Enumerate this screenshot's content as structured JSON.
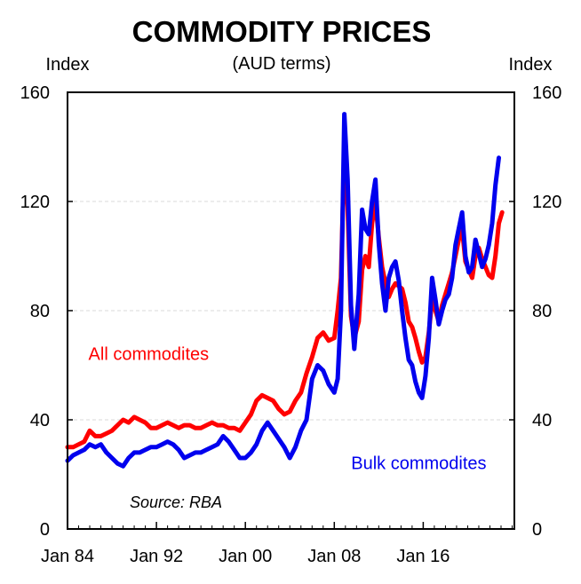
{
  "chart_data": {
    "type": "line",
    "title": "COMMODITY PRICES",
    "subtitle": "(AUD terms)",
    "ylabel_left": "Index",
    "ylabel_right": "Index",
    "ylim": [
      0,
      160
    ],
    "yticks": [
      0,
      40,
      80,
      120,
      160
    ],
    "xlim": [
      1984.0,
      2024.2
    ],
    "xticks": [
      {
        "x": 1984,
        "label": "Jan 84"
      },
      {
        "x": 1992,
        "label": "Jan 92"
      },
      {
        "x": 2000,
        "label": "Jan 00"
      },
      {
        "x": 2008,
        "label": "Jan 08"
      },
      {
        "x": 2016,
        "label": "Jan 16"
      }
    ],
    "grid": true,
    "source": "Source: RBA",
    "series": [
      {
        "name": "All commodites",
        "color": "#ff0000",
        "label_anchor": [
          1991.3,
          62
        ],
        "points": [
          [
            1984.0,
            30
          ],
          [
            1984.5,
            30
          ],
          [
            1985.0,
            31
          ],
          [
            1985.5,
            32
          ],
          [
            1986.0,
            36
          ],
          [
            1986.5,
            34
          ],
          [
            1987.0,
            34
          ],
          [
            1987.5,
            35
          ],
          [
            1988.0,
            36
          ],
          [
            1988.5,
            38
          ],
          [
            1989.0,
            40
          ],
          [
            1989.5,
            39
          ],
          [
            1990.0,
            41
          ],
          [
            1990.5,
            40
          ],
          [
            1991.0,
            39
          ],
          [
            1991.5,
            37
          ],
          [
            1992.0,
            37
          ],
          [
            1992.5,
            38
          ],
          [
            1993.0,
            39
          ],
          [
            1993.5,
            38
          ],
          [
            1994.0,
            37
          ],
          [
            1994.5,
            38
          ],
          [
            1995.0,
            38
          ],
          [
            1995.5,
            37
          ],
          [
            1996.0,
            37
          ],
          [
            1996.5,
            38
          ],
          [
            1997.0,
            39
          ],
          [
            1997.5,
            38
          ],
          [
            1998.0,
            38
          ],
          [
            1998.5,
            37
          ],
          [
            1999.0,
            37
          ],
          [
            1999.5,
            36
          ],
          [
            2000.0,
            39
          ],
          [
            2000.5,
            42
          ],
          [
            2001.0,
            47
          ],
          [
            2001.5,
            49
          ],
          [
            2002.0,
            48
          ],
          [
            2002.5,
            47
          ],
          [
            2003.0,
            44
          ],
          [
            2003.5,
            42
          ],
          [
            2004.0,
            43
          ],
          [
            2004.5,
            47
          ],
          [
            2005.0,
            50
          ],
          [
            2005.5,
            57
          ],
          [
            2006.0,
            63
          ],
          [
            2006.5,
            70
          ],
          [
            2007.0,
            72
          ],
          [
            2007.5,
            69
          ],
          [
            2008.0,
            70
          ],
          [
            2008.3,
            80
          ],
          [
            2008.6,
            92
          ],
          [
            2008.9,
            138
          ],
          [
            2009.2,
            118
          ],
          [
            2009.5,
            78
          ],
          [
            2009.8,
            70
          ],
          [
            2010.2,
            76
          ],
          [
            2010.5,
            95
          ],
          [
            2010.8,
            100
          ],
          [
            2011.1,
            96
          ],
          [
            2011.4,
            112
          ],
          [
            2011.7,
            120
          ],
          [
            2012.0,
            107
          ],
          [
            2012.3,
            96
          ],
          [
            2012.6,
            90
          ],
          [
            2012.9,
            85
          ],
          [
            2013.2,
            88
          ],
          [
            2013.5,
            90
          ],
          [
            2013.8,
            89
          ],
          [
            2014.1,
            88
          ],
          [
            2014.4,
            83
          ],
          [
            2014.7,
            76
          ],
          [
            2015.0,
            74
          ],
          [
            2015.3,
            70
          ],
          [
            2015.6,
            65
          ],
          [
            2015.9,
            61
          ],
          [
            2016.2,
            63
          ],
          [
            2016.5,
            72
          ],
          [
            2016.8,
            84
          ],
          [
            2017.1,
            80
          ],
          [
            2017.4,
            76
          ],
          [
            2017.7,
            82
          ],
          [
            2018.0,
            86
          ],
          [
            2018.3,
            90
          ],
          [
            2018.6,
            94
          ],
          [
            2018.9,
            100
          ],
          [
            2019.2,
            106
          ],
          [
            2019.5,
            110
          ],
          [
            2019.8,
            98
          ],
          [
            2020.1,
            95
          ],
          [
            2020.4,
            92
          ],
          [
            2020.7,
            100
          ],
          [
            2021.0,
            103
          ],
          [
            2021.3,
            99
          ],
          [
            2021.6,
            96
          ],
          [
            2021.9,
            93
          ],
          [
            2022.2,
            92
          ],
          [
            2022.5,
            100
          ],
          [
            2022.8,
            112
          ],
          [
            2023.1,
            116
          ]
        ]
      },
      {
        "name": "Bulk commodites",
        "color": "#0000ee",
        "label_anchor": [
          2015.6,
          22
        ],
        "points": [
          [
            1984.0,
            25
          ],
          [
            1984.5,
            27
          ],
          [
            1985.0,
            28
          ],
          [
            1985.5,
            29
          ],
          [
            1986.0,
            31
          ],
          [
            1986.5,
            30
          ],
          [
            1987.0,
            31
          ],
          [
            1987.5,
            28
          ],
          [
            1988.0,
            26
          ],
          [
            1988.5,
            24
          ],
          [
            1989.0,
            23
          ],
          [
            1989.5,
            26
          ],
          [
            1990.0,
            28
          ],
          [
            1990.5,
            28
          ],
          [
            1991.0,
            29
          ],
          [
            1991.5,
            30
          ],
          [
            1992.0,
            30
          ],
          [
            1992.5,
            31
          ],
          [
            1993.0,
            32
          ],
          [
            1993.5,
            31
          ],
          [
            1994.0,
            29
          ],
          [
            1994.5,
            26
          ],
          [
            1995.0,
            27
          ],
          [
            1995.5,
            28
          ],
          [
            1996.0,
            28
          ],
          [
            1996.5,
            29
          ],
          [
            1997.0,
            30
          ],
          [
            1997.5,
            31
          ],
          [
            1998.0,
            34
          ],
          [
            1998.5,
            32
          ],
          [
            1999.0,
            29
          ],
          [
            1999.5,
            26
          ],
          [
            2000.0,
            26
          ],
          [
            2000.5,
            28
          ],
          [
            2001.0,
            31
          ],
          [
            2001.5,
            36
          ],
          [
            2002.0,
            39
          ],
          [
            2002.5,
            36
          ],
          [
            2003.0,
            33
          ],
          [
            2003.5,
            30
          ],
          [
            2004.0,
            26
          ],
          [
            2004.5,
            30
          ],
          [
            2005.0,
            36
          ],
          [
            2005.5,
            40
          ],
          [
            2006.0,
            55
          ],
          [
            2006.5,
            60
          ],
          [
            2007.0,
            58
          ],
          [
            2007.5,
            53
          ],
          [
            2008.0,
            50
          ],
          [
            2008.3,
            55
          ],
          [
            2008.6,
            80
          ],
          [
            2008.9,
            152
          ],
          [
            2009.2,
            128
          ],
          [
            2009.5,
            82
          ],
          [
            2009.8,
            66
          ],
          [
            2010.2,
            86
          ],
          [
            2010.5,
            117
          ],
          [
            2010.8,
            110
          ],
          [
            2011.1,
            108
          ],
          [
            2011.4,
            120
          ],
          [
            2011.7,
            128
          ],
          [
            2012.0,
            105
          ],
          [
            2012.3,
            90
          ],
          [
            2012.6,
            80
          ],
          [
            2012.9,
            92
          ],
          [
            2013.2,
            96
          ],
          [
            2013.5,
            98
          ],
          [
            2013.8,
            91
          ],
          [
            2014.1,
            80
          ],
          [
            2014.4,
            70
          ],
          [
            2014.7,
            62
          ],
          [
            2015.0,
            60
          ],
          [
            2015.3,
            54
          ],
          [
            2015.6,
            50
          ],
          [
            2015.9,
            48
          ],
          [
            2016.2,
            56
          ],
          [
            2016.5,
            70
          ],
          [
            2016.8,
            92
          ],
          [
            2017.1,
            84
          ],
          [
            2017.4,
            75
          ],
          [
            2017.7,
            80
          ],
          [
            2018.0,
            84
          ],
          [
            2018.3,
            86
          ],
          [
            2018.6,
            92
          ],
          [
            2018.9,
            104
          ],
          [
            2019.2,
            110
          ],
          [
            2019.5,
            116
          ],
          [
            2019.8,
            100
          ],
          [
            2020.1,
            94
          ],
          [
            2020.4,
            96
          ],
          [
            2020.7,
            106
          ],
          [
            2021.0,
            101
          ],
          [
            2021.3,
            96
          ],
          [
            2021.6,
            99
          ],
          [
            2021.9,
            104
          ],
          [
            2022.2,
            112
          ],
          [
            2022.5,
            126
          ],
          [
            2022.8,
            136
          ]
        ]
      }
    ]
  }
}
